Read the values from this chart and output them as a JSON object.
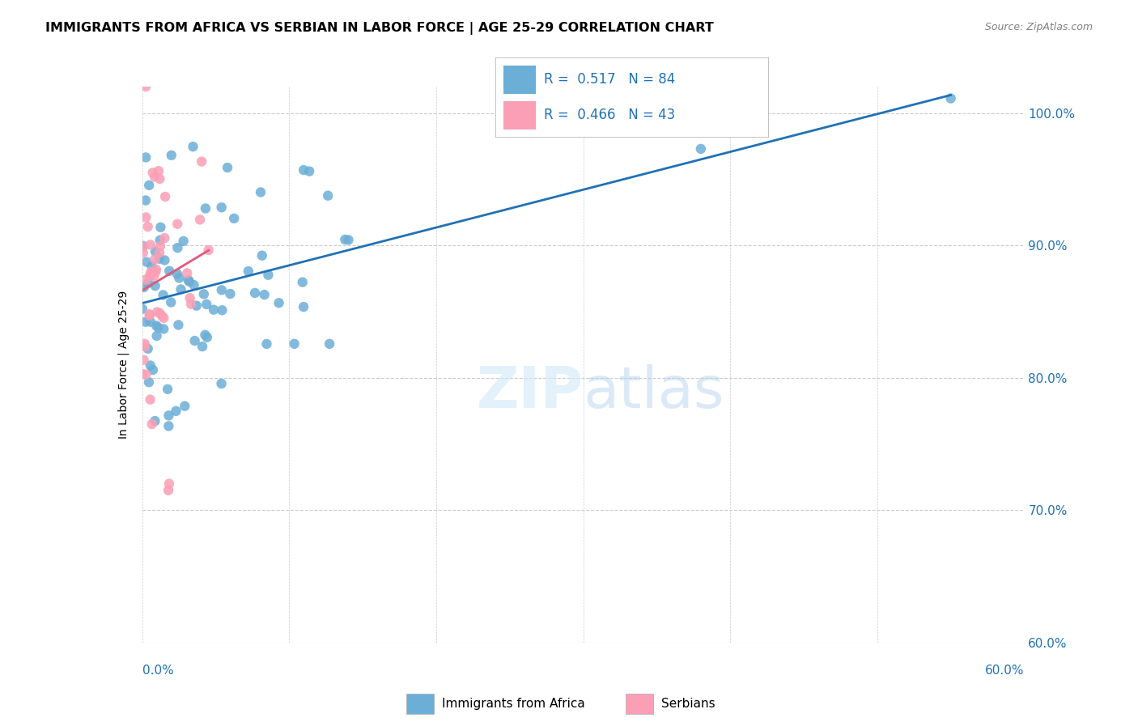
{
  "title": "IMMIGRANTS FROM AFRICA VS SERBIAN IN LABOR FORCE | AGE 25-29 CORRELATION CHART",
  "source": "Source: ZipAtlas.com",
  "ylabel": "In Labor Force | Age 25-29",
  "ylabel_ticks": [
    "60.0%",
    "70.0%",
    "80.0%",
    "90.0%",
    "100.0%"
  ],
  "ylabel_tick_vals": [
    0.6,
    0.7,
    0.8,
    0.9,
    1.0
  ],
  "xmin": 0.0,
  "xmax": 0.6,
  "ymin": 0.6,
  "ymax": 1.02,
  "blue_color": "#6baed6",
  "pink_color": "#fa9fb5",
  "blue_line_color": "#2171b5",
  "pink_line_color": "#e05a7a",
  "legend_text_color": "#2171b5"
}
